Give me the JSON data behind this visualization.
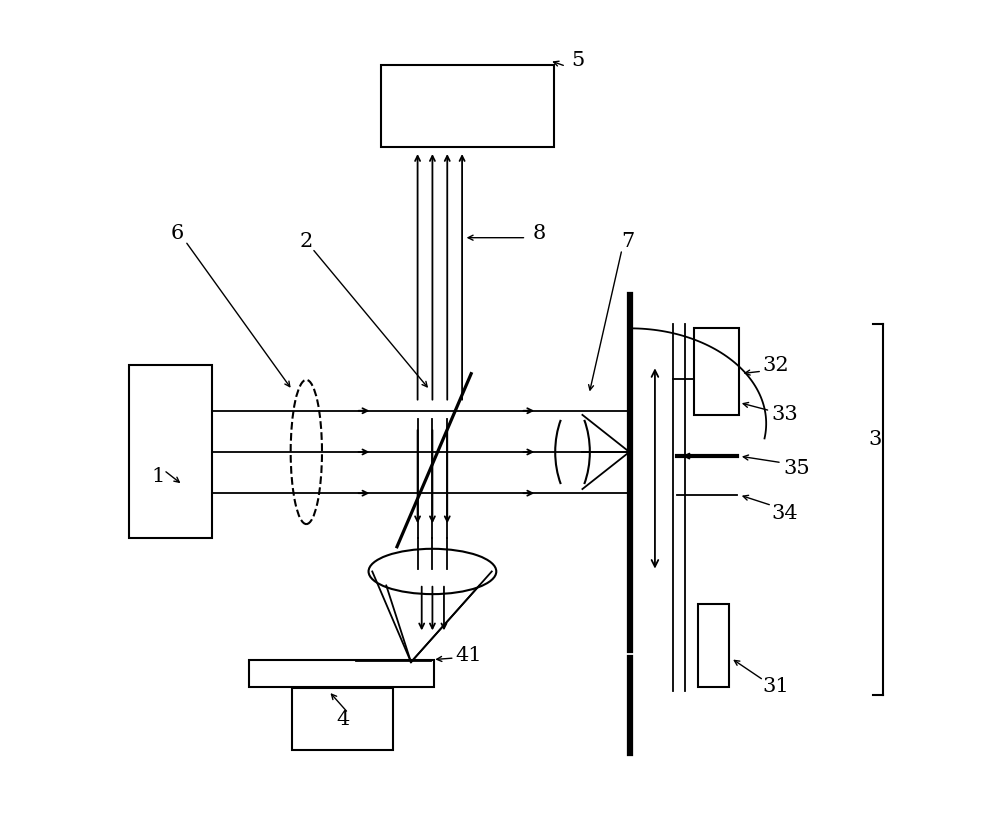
{
  "bg_color": "#ffffff",
  "line_color": "#000000",
  "line_width": 1.5,
  "fig_width": 10.0,
  "fig_height": 8.38,
  "dpi": 100
}
